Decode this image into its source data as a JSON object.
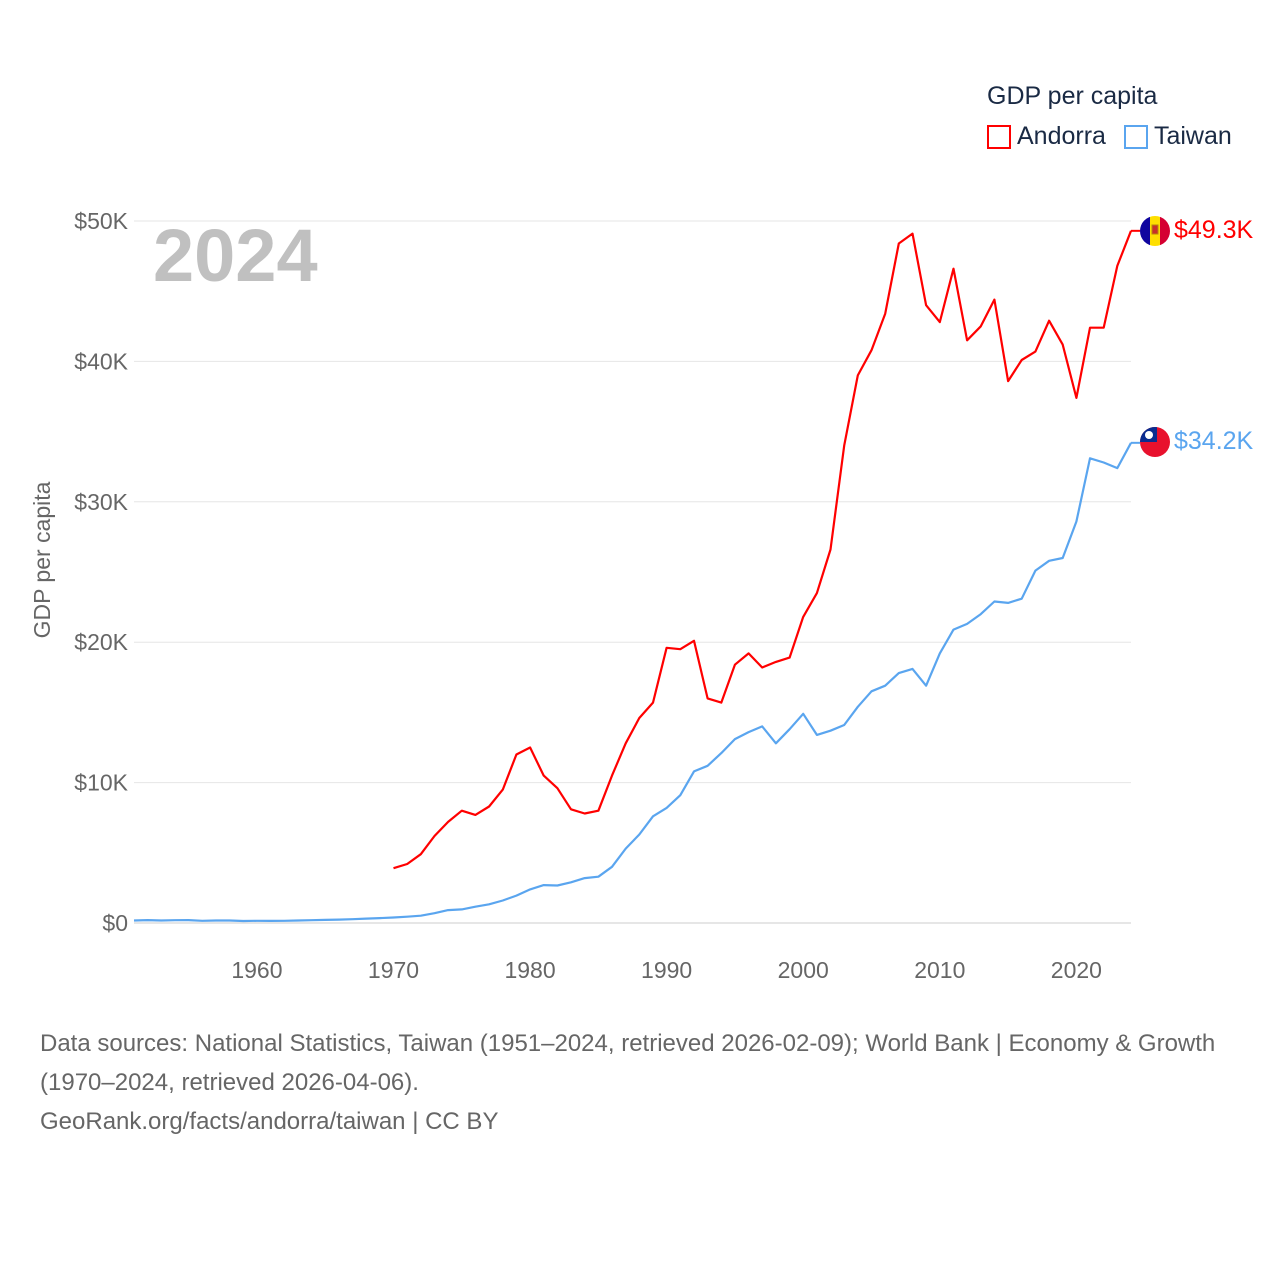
{
  "legend": {
    "title": "GDP per capita",
    "items": [
      {
        "label": "Andorra",
        "color": "#ff0000"
      },
      {
        "label": "Taiwan",
        "color": "#5aa5ef"
      }
    ]
  },
  "footer": {
    "sources": "Data sources: National Statistics, Taiwan (1951–2024, retrieved 2026-02-09); World Bank | Economy & Growth (1970–2024, retrieved 2026-04-06).",
    "attribution": "GeoRank.org/facts/andorra/taiwan | CC BY"
  },
  "chart_data": {
    "type": "line",
    "year_label": "2024",
    "ylabel": "GDP per capita",
    "xlim": [
      1951,
      2024
    ],
    "ylim": [
      0,
      50000
    ],
    "grid": true,
    "legend_position": "top-right",
    "x_ticks": [
      1960,
      1970,
      1980,
      1990,
      2000,
      2010,
      2020
    ],
    "y_ticks": [
      {
        "value": 0,
        "label": "$0"
      },
      {
        "value": 10000,
        "label": "$10K"
      },
      {
        "value": 20000,
        "label": "$20K"
      },
      {
        "value": 30000,
        "label": "$30K"
      },
      {
        "value": 40000,
        "label": "$40K"
      },
      {
        "value": 50000,
        "label": "$50K"
      }
    ],
    "series": [
      {
        "name": "Andorra",
        "color": "#ff0000",
        "end_label": "$49.3K",
        "start_year": 1970,
        "values": [
          3.9,
          4.2,
          4.9,
          6.2,
          7.2,
          8.0,
          7.7,
          8.3,
          9.5,
          12.0,
          12.5,
          10.5,
          9.6,
          8.1,
          7.8,
          8.0,
          10.5,
          12.8,
          14.6,
          15.7,
          19.6,
          19.5,
          20.1,
          16.0,
          15.7,
          18.4,
          19.2,
          18.2,
          18.6,
          18.9,
          21.8,
          23.5,
          26.6,
          34.0,
          39.0,
          40.8,
          43.4,
          48.4,
          49.1,
          44.0,
          42.8,
          46.6,
          41.5,
          42.5,
          44.4,
          38.6,
          40.1,
          40.7,
          42.9,
          41.2,
          37.4,
          42.4,
          42.4,
          46.8,
          49.3
        ],
        "unit": "thousand USD"
      },
      {
        "name": "Taiwan",
        "color": "#5aa5ef",
        "end_label": "$34.2K",
        "start_year": 1951,
        "values": [
          0.18,
          0.21,
          0.18,
          0.2,
          0.21,
          0.16,
          0.18,
          0.18,
          0.14,
          0.16,
          0.15,
          0.16,
          0.18,
          0.2,
          0.22,
          0.24,
          0.27,
          0.31,
          0.35,
          0.39,
          0.45,
          0.52,
          0.7,
          0.92,
          0.97,
          1.16,
          1.33,
          1.6,
          1.95,
          2.39,
          2.7,
          2.67,
          2.9,
          3.2,
          3.3,
          4.0,
          5.3,
          6.3,
          7.6,
          8.2,
          9.1,
          10.8,
          11.2,
          12.1,
          13.1,
          13.6,
          14.0,
          12.8,
          13.8,
          14.9,
          13.4,
          13.7,
          14.1,
          15.4,
          16.5,
          16.9,
          17.8,
          18.1,
          16.9,
          19.2,
          20.9,
          21.3,
          22.0,
          22.9,
          22.8,
          23.1,
          25.1,
          25.8,
          26.0,
          28.6,
          33.1,
          32.8,
          32.4,
          34.2
        ],
        "unit": "thousand USD"
      }
    ]
  }
}
